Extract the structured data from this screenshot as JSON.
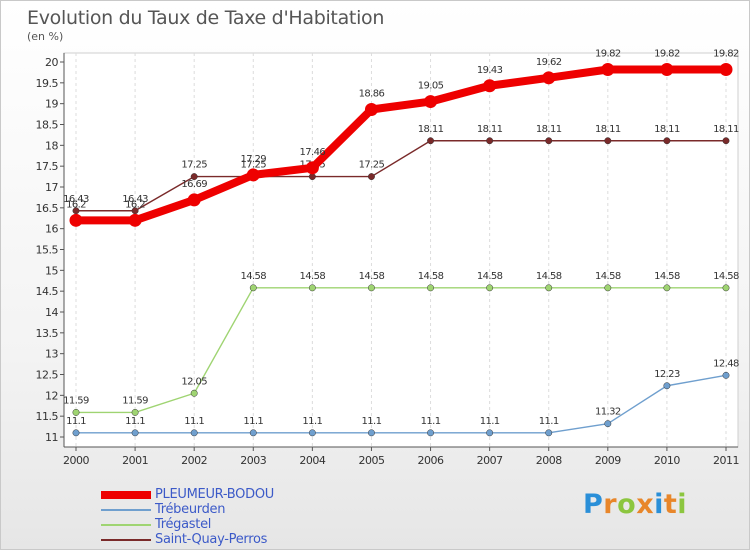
{
  "title": "Evolution du Taux de Taxe d'Habitation",
  "unit_label": "(en %)",
  "logo_text": "Proxiti",
  "chart_data": {
    "type": "line",
    "title": "Evolution du Taux de Taxe d'Habitation",
    "ylabel": "(en %)",
    "xlabel": "",
    "x": [
      "2000",
      "2001",
      "2002",
      "2003",
      "2004",
      "2005",
      "2006",
      "2007",
      "2008",
      "2009",
      "2010",
      "2011"
    ],
    "ylim": [
      11,
      20
    ],
    "yticks": [
      "11",
      "11.5",
      "12",
      "12.5",
      "13",
      "13.5",
      "14",
      "14.5",
      "15",
      "15.5",
      "16",
      "16.5",
      "17",
      "17.5",
      "18",
      "18.5",
      "19",
      "19.5",
      "20"
    ],
    "grid": "vertical",
    "legend_position": "bottom-left",
    "series": [
      {
        "name": "PLEUMEUR-BODOU",
        "color": "#ee0000",
        "emphasis": true,
        "values": [
          16.2,
          16.2,
          16.69,
          17.29,
          17.46,
          18.86,
          19.05,
          19.43,
          19.62,
          19.82,
          19.82,
          19.82
        ]
      },
      {
        "name": "Trébeurden",
        "color": "#6f9fce",
        "emphasis": false,
        "values": [
          11.1,
          11.1,
          11.1,
          11.1,
          11.1,
          11.1,
          11.1,
          11.1,
          11.1,
          11.32,
          12.23,
          12.48
        ]
      },
      {
        "name": "Trégastel",
        "color": "#9fd472",
        "emphasis": false,
        "values": [
          11.59,
          11.59,
          12.05,
          14.58,
          14.58,
          14.58,
          14.58,
          14.58,
          14.58,
          14.58,
          14.58,
          14.58
        ]
      },
      {
        "name": "Saint-Quay-Perros",
        "color": "#7a2a2a",
        "emphasis": false,
        "values": [
          16.43,
          16.43,
          17.25,
          17.25,
          17.25,
          17.25,
          18.11,
          18.11,
          18.11,
          18.11,
          18.11,
          18.11
        ]
      }
    ]
  }
}
